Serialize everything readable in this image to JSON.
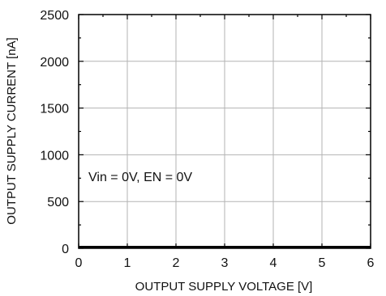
{
  "chart_data": {
    "type": "line",
    "title": "",
    "xlabel": "OUTPUT SUPPLY VOLTAGE [V]",
    "ylabel": "OUTPUT SUPPLY CURRENT [nA]",
    "xlim": [
      0,
      6
    ],
    "ylim": [
      0,
      2500
    ],
    "x_ticks": [
      "0",
      "1",
      "2",
      "3",
      "4",
      "5",
      "6"
    ],
    "y_ticks": [
      "0",
      "500",
      "1000",
      "1500",
      "2000",
      "2500"
    ],
    "x_tick_values": [
      0,
      1,
      2,
      3,
      4,
      5,
      6
    ],
    "y_tick_values": [
      0,
      500,
      1000,
      1500,
      2000,
      2500
    ],
    "x_minor_step": 0.5,
    "y_minor_step": 250,
    "grid": true,
    "annotation": "Vin = 0V, EN = 0V",
    "series": [
      {
        "x": [
          0,
          1,
          2,
          3,
          4,
          5,
          6
        ],
        "values": [
          0,
          0,
          0,
          0,
          0,
          0,
          0
        ],
        "color": "#000000"
      }
    ]
  }
}
